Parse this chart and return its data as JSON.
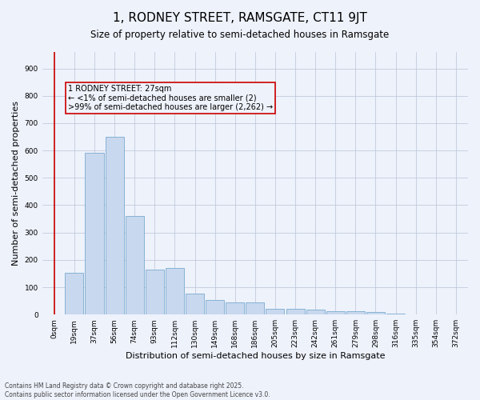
{
  "title": "1, RODNEY STREET, RAMSGATE, CT11 9JT",
  "subtitle": "Size of property relative to semi-detached houses in Ramsgate",
  "xlabel": "Distribution of semi-detached houses by size in Ramsgate",
  "ylabel": "Number of semi-detached properties",
  "bar_color": "#c8d8ee",
  "bar_edge_color": "#7aaad0",
  "background_color": "#eef2fb",
  "grid_color": "#b8c4d8",
  "annotation_box_color": "#cc0000",
  "annotation_text": "1 RODNEY STREET: 27sqm\n← <1% of semi-detached houses are smaller (2)\n>99% of semi-detached houses are larger (2,262) →",
  "vline_color": "#cc0000",
  "categories": [
    "0sqm",
    "19sqm",
    "37sqm",
    "56sqm",
    "74sqm",
    "93sqm",
    "112sqm",
    "130sqm",
    "149sqm",
    "168sqm",
    "186sqm",
    "205sqm",
    "223sqm",
    "242sqm",
    "261sqm",
    "279sqm",
    "298sqm",
    "316sqm",
    "335sqm",
    "354sqm",
    "372sqm"
  ],
  "values": [
    2,
    152,
    590,
    650,
    360,
    165,
    170,
    78,
    52,
    45,
    45,
    20,
    20,
    17,
    12,
    12,
    8,
    3,
    2,
    1,
    0
  ],
  "ylim": [
    0,
    960
  ],
  "yticks": [
    0,
    100,
    200,
    300,
    400,
    500,
    600,
    700,
    800,
    900
  ],
  "footnote": "Contains HM Land Registry data © Crown copyright and database right 2025.\nContains public sector information licensed under the Open Government Licence v3.0.",
  "title_fontsize": 11,
  "subtitle_fontsize": 8.5,
  "label_fontsize": 8,
  "tick_fontsize": 6.5,
  "footnote_fontsize": 5.5,
  "annotation_fontsize": 7
}
